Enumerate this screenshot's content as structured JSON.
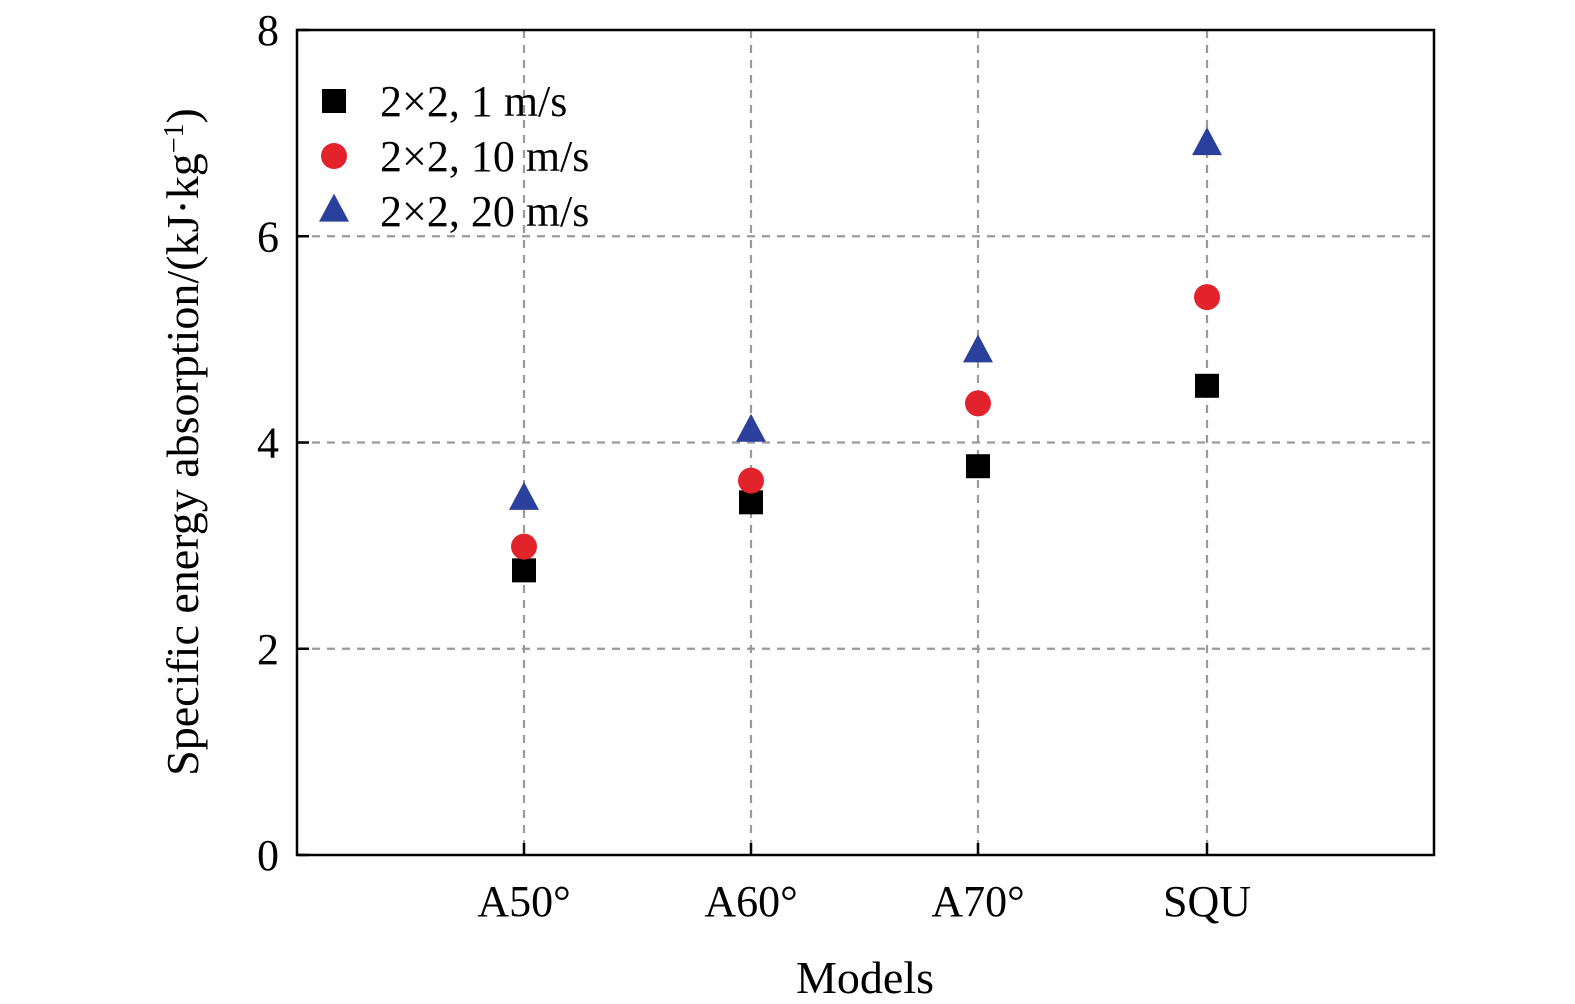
{
  "chart_data": {
    "type": "scatter",
    "categories": [
      "A50°",
      "A60°",
      "A70°",
      "SQU"
    ],
    "xlabel": "Models",
    "ylabel": "Specific energy absorption/(kJ·kg",
    "ylabel_superscript": "−1",
    "ylabel_suffix": ")",
    "ylim": [
      0,
      8
    ],
    "yticks": [
      0,
      2,
      4,
      6,
      8
    ],
    "grid": true,
    "legend_position": "top-left",
    "series": [
      {
        "name": "2×2, 1 m/s",
        "marker": "square",
        "color": "#000000",
        "values": [
          2.76,
          3.42,
          3.77,
          4.55
        ]
      },
      {
        "name": "2×2, 10 m/s",
        "marker": "circle",
        "color": "#e3232c",
        "values": [
          2.99,
          3.63,
          4.38,
          5.41
        ]
      },
      {
        "name": "2×2, 20 m/s",
        "marker": "triangle",
        "color": "#2b3f9c",
        "values": [
          3.45,
          4.11,
          4.88,
          6.89
        ]
      }
    ]
  }
}
